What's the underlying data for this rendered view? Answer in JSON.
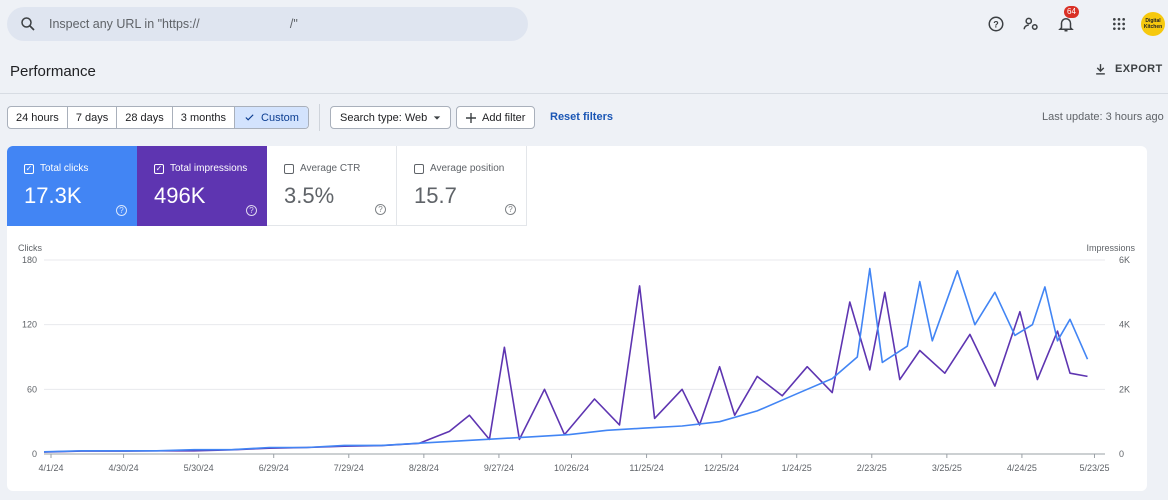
{
  "search": {
    "placeholder": "Inspect any URL in \"https://                          /\"",
    "icon": "search-icon"
  },
  "header": {
    "notification_count": "64",
    "avatar_text": "Digital Kitchen"
  },
  "page": {
    "title": "Performance",
    "export_label": "EXPORT"
  },
  "filters": {
    "ranges": [
      "24 hours",
      "7 days",
      "28 days",
      "3 months",
      "Custom"
    ],
    "active_range": "Custom",
    "search_type": "Search type: Web",
    "add_filter": "Add filter",
    "reset": "Reset filters",
    "last_update": "Last update: 3 hours ago"
  },
  "metrics": {
    "clicks": {
      "label": "Total clicks",
      "value": "17.3K",
      "checked": true
    },
    "impressions": {
      "label": "Total impressions",
      "value": "496K",
      "checked": true
    },
    "ctr": {
      "label": "Average CTR",
      "value": "3.5%",
      "checked": false
    },
    "position": {
      "label": "Average position",
      "value": "15.7",
      "checked": false
    }
  },
  "colors": {
    "clicks": "#4285f4",
    "impressions": "#5e35b1"
  },
  "chart_data": {
    "type": "line",
    "ylabel": "Clicks",
    "y2label": "Impressions",
    "ylim": [
      0,
      180
    ],
    "y2lim": [
      0,
      6000
    ],
    "y_ticks": [
      "0",
      "60",
      "120",
      "180"
    ],
    "y2_ticks": [
      "0",
      "2K",
      "4K",
      "6K"
    ],
    "x_ticks": [
      "4/1/24",
      "4/30/24",
      "5/30/24",
      "6/29/24",
      "7/29/24",
      "8/28/24",
      "9/27/24",
      "10/26/24",
      "11/25/24",
      "12/25/24",
      "1/24/25",
      "2/23/25",
      "3/25/25",
      "4/24/25",
      "5/23/25"
    ],
    "x_tick_days": [
      0,
      29,
      59,
      89,
      119,
      149,
      179,
      208,
      238,
      268,
      298,
      328,
      358,
      388,
      417
    ],
    "series": [
      {
        "name": "Total clicks",
        "axis": "left",
        "points": [
          [
            0,
            2
          ],
          [
            15,
            3
          ],
          [
            30,
            3
          ],
          [
            45,
            3
          ],
          [
            60,
            4
          ],
          [
            75,
            4
          ],
          [
            90,
            6
          ],
          [
            105,
            6
          ],
          [
            120,
            8
          ],
          [
            135,
            8
          ],
          [
            150,
            10
          ],
          [
            165,
            12
          ],
          [
            180,
            14
          ],
          [
            195,
            16
          ],
          [
            210,
            18
          ],
          [
            225,
            22
          ],
          [
            240,
            24
          ],
          [
            255,
            26
          ],
          [
            270,
            30
          ],
          [
            285,
            40
          ],
          [
            300,
            55
          ],
          [
            315,
            70
          ],
          [
            325,
            90
          ],
          [
            330,
            172
          ],
          [
            335,
            85
          ],
          [
            345,
            100
          ],
          [
            350,
            160
          ],
          [
            355,
            105
          ],
          [
            365,
            170
          ],
          [
            372,
            120
          ],
          [
            380,
            150
          ],
          [
            388,
            110
          ],
          [
            395,
            120
          ],
          [
            400,
            155
          ],
          [
            405,
            105
          ],
          [
            410,
            125
          ],
          [
            417,
            88
          ]
        ]
      },
      {
        "name": "Total impressions",
        "axis": "right",
        "points": [
          [
            0,
            60
          ],
          [
            15,
            90
          ],
          [
            30,
            90
          ],
          [
            45,
            100
          ],
          [
            60,
            100
          ],
          [
            75,
            130
          ],
          [
            90,
            180
          ],
          [
            105,
            200
          ],
          [
            120,
            240
          ],
          [
            135,
            260
          ],
          [
            150,
            330
          ],
          [
            162,
            700
          ],
          [
            170,
            1200
          ],
          [
            178,
            450
          ],
          [
            184,
            3300
          ],
          [
            190,
            450
          ],
          [
            200,
            2000
          ],
          [
            208,
            600
          ],
          [
            220,
            1700
          ],
          [
            230,
            900
          ],
          [
            238,
            5200
          ],
          [
            244,
            1100
          ],
          [
            255,
            2000
          ],
          [
            262,
            900
          ],
          [
            270,
            2700
          ],
          [
            276,
            1200
          ],
          [
            285,
            2400
          ],
          [
            295,
            1800
          ],
          [
            305,
            2700
          ],
          [
            315,
            1900
          ],
          [
            322,
            4700
          ],
          [
            330,
            2600
          ],
          [
            336,
            5000
          ],
          [
            342,
            2300
          ],
          [
            350,
            3200
          ],
          [
            360,
            2500
          ],
          [
            370,
            3700
          ],
          [
            380,
            2100
          ],
          [
            390,
            4400
          ],
          [
            397,
            2300
          ],
          [
            405,
            3800
          ],
          [
            410,
            2500
          ],
          [
            417,
            2400
          ]
        ]
      }
    ]
  }
}
